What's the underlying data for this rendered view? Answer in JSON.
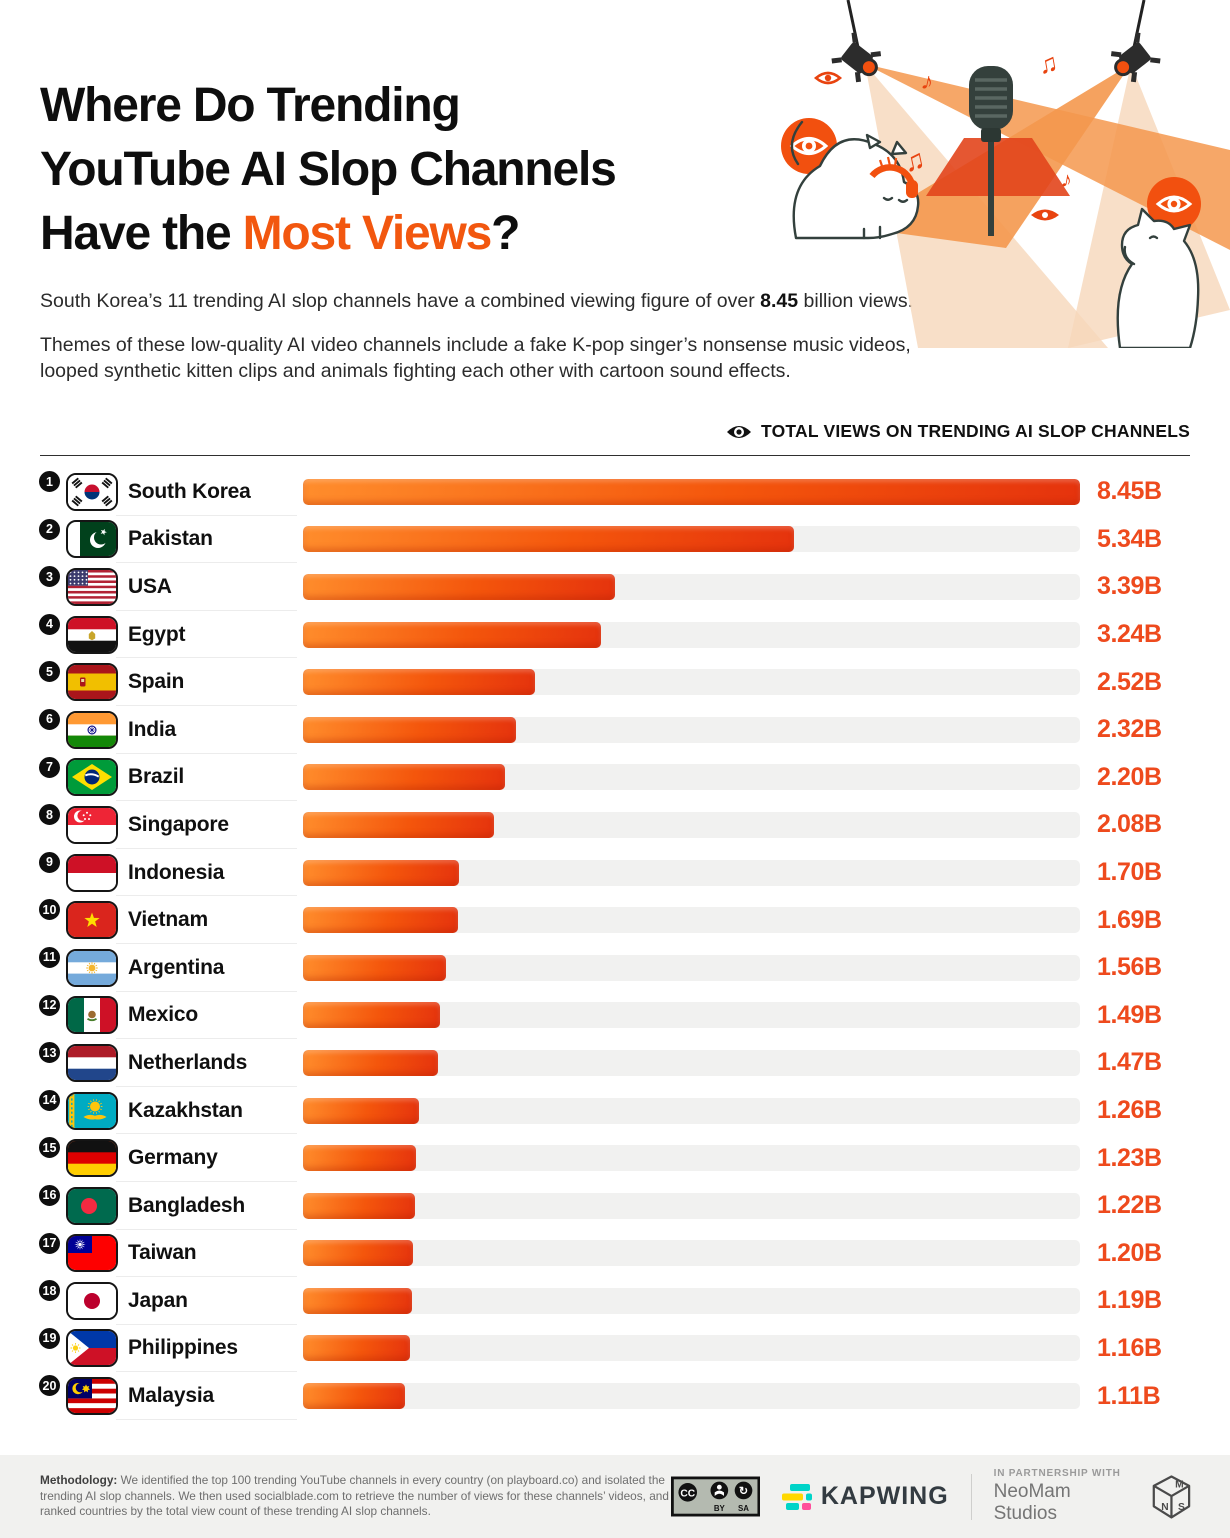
{
  "header": {
    "title_line1": "Where Do Trending",
    "title_line2": "YouTube AI Slop Channels",
    "title_line3_prefix": "Have the ",
    "title_line3_accent": "Most Views",
    "title_line3_suffix": "?",
    "intro_prefix": "South Korea’s 11 trending AI slop channels have a combined viewing figure of over ",
    "intro_bold": "8.45",
    "intro_suffix": " billion views.",
    "description": "Themes of these low-quality AI video channels include a fake K-pop singer’s nonsense music videos, looped synthetic kitten clips and animals fighting each other with cartoon sound effects."
  },
  "chart": {
    "legend_label": "TOTAL VIEWS ON TRENDING AI SLOP CHANNELS"
  },
  "chart_data": {
    "type": "bar",
    "orientation": "horizontal",
    "title": "Total views on trending AI slop channels",
    "unit": "billions of views",
    "max_value": 8.45,
    "ranks": [
      1,
      2,
      3,
      4,
      5,
      6,
      7,
      8,
      9,
      10,
      11,
      12,
      13,
      14,
      15,
      16,
      17,
      18,
      19,
      20
    ],
    "categories": [
      "South Korea",
      "Pakistan",
      "USA",
      "Egypt",
      "Spain",
      "India",
      "Brazil",
      "Singapore",
      "Indonesia",
      "Vietnam",
      "Argentina",
      "Mexico",
      "Netherlands",
      "Kazakhstan",
      "Germany",
      "Bangladesh",
      "Taiwan",
      "Japan",
      "Philippines",
      "Malaysia"
    ],
    "values": [
      8.45,
      5.34,
      3.39,
      3.24,
      2.52,
      2.32,
      2.2,
      2.08,
      1.7,
      1.69,
      1.56,
      1.49,
      1.47,
      1.26,
      1.23,
      1.22,
      1.2,
      1.19,
      1.16,
      1.11
    ],
    "value_labels": [
      "8.45B",
      "5.34B",
      "3.39B",
      "3.24B",
      "2.52B",
      "2.32B",
      "2.20B",
      "2.08B",
      "1.70B",
      "1.69B",
      "1.56B",
      "1.49B",
      "1.47B",
      "1.26B",
      "1.23B",
      "1.22B",
      "1.20B",
      "1.19B",
      "1.16B",
      "1.11B"
    ],
    "flags": [
      "kr",
      "pk",
      "us",
      "eg",
      "es",
      "in",
      "br",
      "sg",
      "id",
      "vn",
      "ar",
      "mx",
      "nl",
      "kz",
      "de",
      "bd",
      "tw",
      "jp",
      "ph",
      "my"
    ],
    "bar_gradient": [
      "#ff8d2c",
      "#f4560c",
      "#e5330d"
    ],
    "track_color": "#f1f1f0",
    "value_color": "#ee4a1d",
    "legend_position": "top-right",
    "grid": false
  },
  "footer": {
    "methodology_label": "Methodology:",
    "methodology_text": " We identified the top 100 trending YouTube channels in every country (on playboard.co) and isolated the trending AI slop channels. We then used socialblade.com to retrieve the number of views for these channels’ videos, and ranked countries by the total view count of these trending AI slop channels.",
    "license": "CC BY SA",
    "license_by": "BY",
    "license_sa": "SA",
    "kapwing_label": "KAPWING",
    "partnership_label": "IN PARTNERSHIP WITH",
    "studio_label": "NeoMam Studios"
  },
  "colors": {
    "accent_orange": "#f2570f",
    "eye_badge_orange": "#f2500f",
    "beam_pale": "#f6d7ba",
    "beam_orange": "#f4984e",
    "beam_overlap": "#e2451c",
    "title_black": "#0e0e0e"
  }
}
